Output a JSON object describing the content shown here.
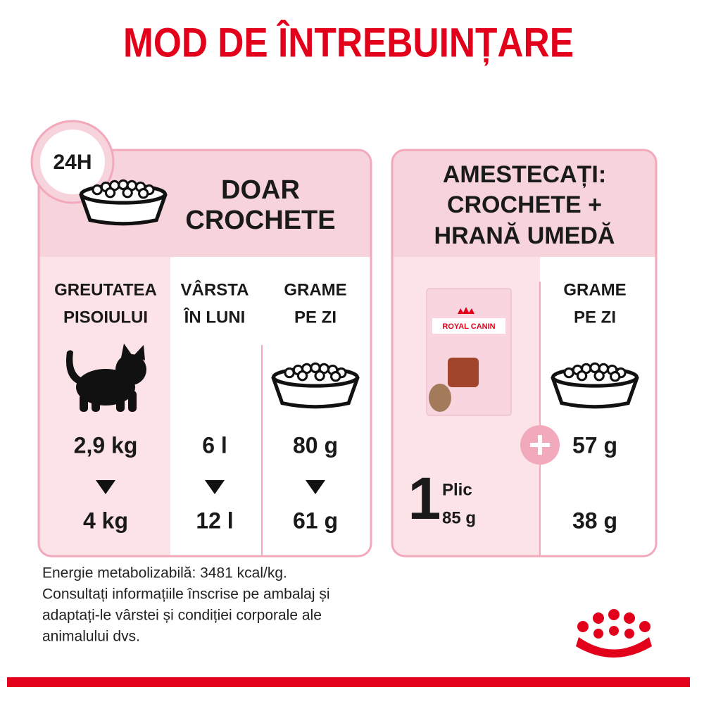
{
  "title": "MOD DE ÎNTREBUINȚARE",
  "left_panel": {
    "badge": "24H",
    "heading": [
      "DOAR",
      "CROCHETE"
    ],
    "columns": [
      {
        "header": [
          "GREUTATEA",
          "PISOIULUI"
        ],
        "from": "2,9 kg",
        "to": "4 kg"
      },
      {
        "header": [
          "VÂRSTA",
          "ÎN LUNI"
        ],
        "from": "6 l",
        "to": "12 l"
      },
      {
        "header": [
          "GRAME",
          "PE ZI"
        ],
        "from": "80 g",
        "to": "61 g"
      }
    ]
  },
  "right_panel": {
    "heading": [
      "AMESTECAȚI:",
      "CROCHETE +",
      "HRANĂ UMEDĂ"
    ],
    "pouch": {
      "brand": "ROYAL CANIN",
      "count": "1",
      "unit": "Plic",
      "weight": "85 g"
    },
    "column": {
      "header": [
        "GRAME",
        "PE ZI"
      ],
      "from": "57 g",
      "to": "38 g"
    }
  },
  "note": [
    "Energie metabolizabilă: 3481 kcal/kg.",
    "Consultați informațiile înscrise pe ambalaj și",
    "adaptați-le vârstei și condiției corporale ale",
    "animalului dvs."
  ]
}
